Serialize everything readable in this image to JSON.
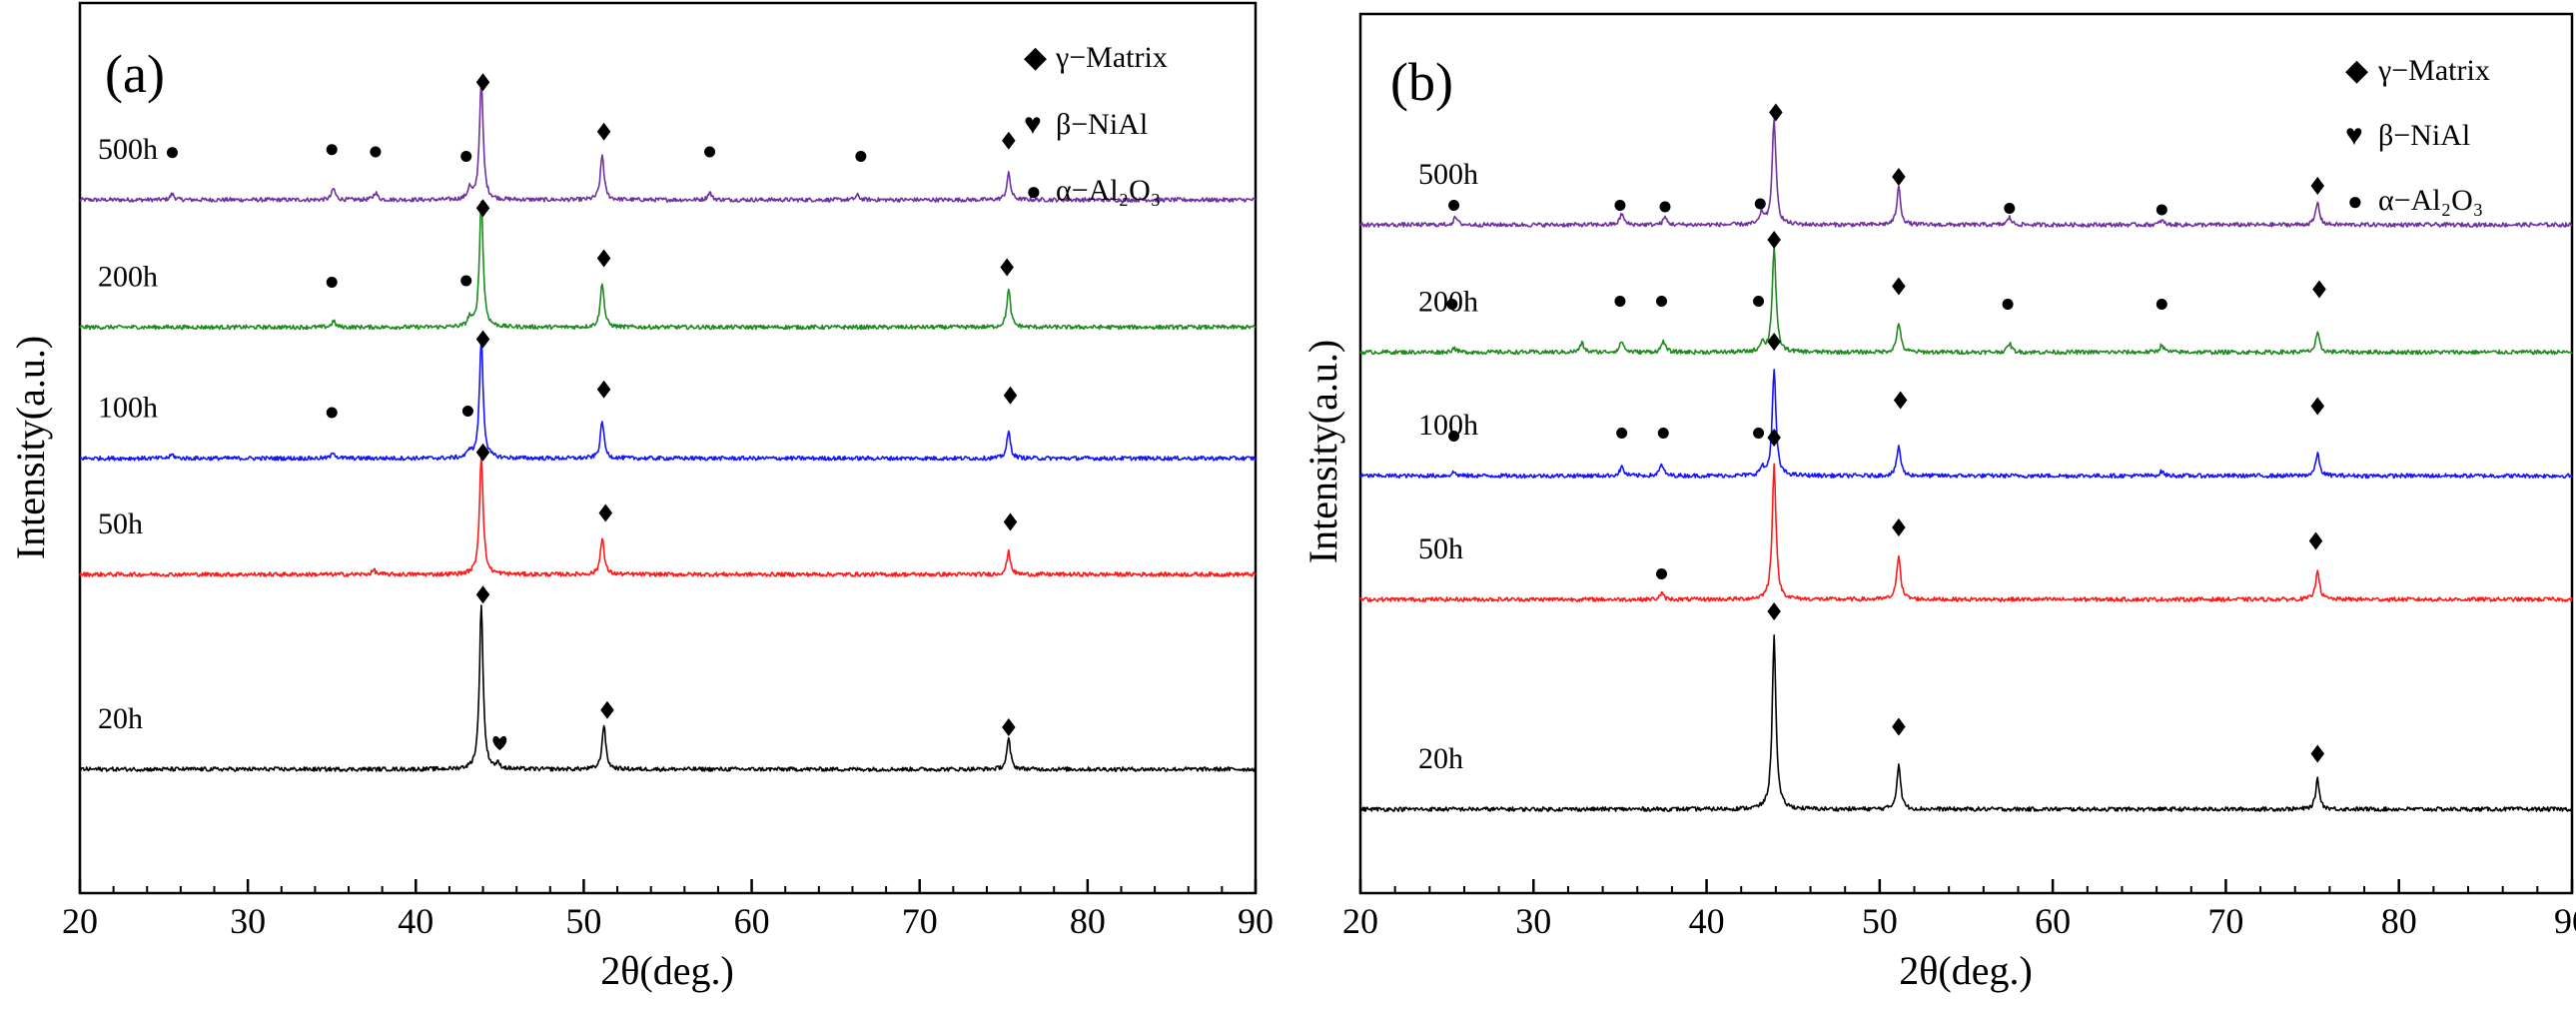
{
  "figure": {
    "xlabel": "2θ(deg.)",
    "ylabel": "Intensity(a.u.)"
  },
  "legend": [
    {
      "symbol": "diamond",
      "glyph": "◆",
      "label": "γ−Matrix"
    },
    {
      "symbol": "heart",
      "glyph": "♥",
      "label": "β−NiAl"
    },
    {
      "symbol": "circle",
      "glyph": "●",
      "label": "α−Al₂O₃"
    }
  ],
  "chart_data": [
    {
      "type": "line",
      "panel": "(a)",
      "xlabel": "2θ(deg.)",
      "ylabel": "Intensity(a.u.)",
      "xlim": [
        20,
        90
      ],
      "xticks": [
        20,
        30,
        40,
        50,
        60,
        70,
        80,
        90
      ],
      "ylim": [
        0,
        100
      ],
      "grid": false,
      "legend_position": "top-right",
      "series": [
        {
          "name": "500h",
          "color": "#7030a0",
          "baseline": 88,
          "peaks": [
            [
              25.5,
              0.8
            ],
            [
              35.1,
              1.5
            ],
            [
              37.6,
              1
            ],
            [
              43.2,
              1.5
            ],
            [
              43.9,
              16
            ],
            [
              51.1,
              6
            ],
            [
              57.5,
              1
            ],
            [
              66.3,
              0.6
            ],
            [
              75.3,
              3.5
            ]
          ],
          "markers": [
            {
              "symbol": "circle",
              "x": 25.5,
              "y": 94.3
            },
            {
              "symbol": "circle",
              "x": 35.0,
              "y": 94.7
            },
            {
              "symbol": "circle",
              "x": 37.6,
              "y": 94.4
            },
            {
              "symbol": "circle",
              "x": 43.0,
              "y": 93.8
            },
            {
              "symbol": "diamond",
              "x": 44.0,
              "y": 103.7
            },
            {
              "symbol": "diamond",
              "x": 51.2,
              "y": 97.1
            },
            {
              "symbol": "circle",
              "x": 57.5,
              "y": 94.4
            },
            {
              "symbol": "circle",
              "x": 66.5,
              "y": 93.8
            },
            {
              "symbol": "diamond",
              "x": 75.3,
              "y": 95.9
            }
          ]
        },
        {
          "name": "200h",
          "color": "#1f8a1f",
          "baseline": 71,
          "peaks": [
            [
              35.1,
              0.8
            ],
            [
              43.2,
              1.2
            ],
            [
              43.9,
              17
            ],
            [
              51.1,
              6
            ],
            [
              75.3,
              5
            ]
          ],
          "markers": [
            {
              "symbol": "circle",
              "x": 35.0,
              "y": 77.0
            },
            {
              "symbol": "circle",
              "x": 43.0,
              "y": 77.2
            },
            {
              "symbol": "diamond",
              "x": 44.0,
              "y": 86.9
            },
            {
              "symbol": "diamond",
              "x": 51.2,
              "y": 80.2
            },
            {
              "symbol": "diamond",
              "x": 75.2,
              "y": 79.0
            }
          ]
        },
        {
          "name": "100h",
          "color": "#1414ff",
          "baseline": 53.5,
          "peaks": [
            [
              25.5,
              0.5
            ],
            [
              35.1,
              0.8
            ],
            [
              43.2,
              1
            ],
            [
              43.9,
              16
            ],
            [
              51.1,
              5
            ],
            [
              75.3,
              3.5
            ]
          ],
          "markers": [
            {
              "symbol": "circle",
              "x": 35.0,
              "y": 59.6
            },
            {
              "symbol": "circle",
              "x": 43.1,
              "y": 59.8
            },
            {
              "symbol": "diamond",
              "x": 44.0,
              "y": 69.4
            },
            {
              "symbol": "diamond",
              "x": 51.2,
              "y": 62.7
            },
            {
              "symbol": "diamond",
              "x": 75.4,
              "y": 61.9
            }
          ]
        },
        {
          "name": "50h",
          "color": "#ff1a1a",
          "baseline": 38,
          "peaks": [
            [
              37.5,
              0.6
            ],
            [
              43.9,
              16
            ],
            [
              51.1,
              5
            ],
            [
              75.3,
              3
            ]
          ],
          "markers": [
            {
              "symbol": "diamond",
              "x": 44.0,
              "y": 54.3
            },
            {
              "symbol": "diamond",
              "x": 51.3,
              "y": 46.2
            },
            {
              "symbol": "diamond",
              "x": 75.4,
              "y": 45.0
            }
          ]
        },
        {
          "name": "20h",
          "color": "#000000",
          "baseline": 12,
          "peaks": [
            [
              43.9,
              22
            ],
            [
              44.9,
              0.6
            ],
            [
              51.2,
              6
            ],
            [
              75.3,
              4
            ]
          ],
          "markers": [
            {
              "symbol": "diamond",
              "x": 44.0,
              "y": 35.3
            },
            {
              "symbol": "heart",
              "x": 45.0,
              "y": 15.6
            },
            {
              "symbol": "diamond",
              "x": 51.4,
              "y": 19.9
            },
            {
              "symbol": "diamond",
              "x": 75.3,
              "y": 17.6
            }
          ]
        }
      ]
    },
    {
      "type": "line",
      "panel": "(b)",
      "xlabel": "2θ(deg.)",
      "ylabel": "Intensity(a.u.)",
      "xlim": [
        20,
        90
      ],
      "xticks": [
        20,
        30,
        40,
        50,
        60,
        70,
        80,
        90
      ],
      "ylim": [
        0,
        100
      ],
      "grid": false,
      "legend_position": "top-right",
      "series": [
        {
          "name": "500h",
          "color": "#7030a0",
          "baseline": 86,
          "peaks": [
            [
              25.5,
              1
            ],
            [
              35.1,
              1.5
            ],
            [
              37.6,
              1
            ],
            [
              43.2,
              1.5
            ],
            [
              43.9,
              14
            ],
            [
              51.1,
              5
            ],
            [
              57.5,
              1
            ],
            [
              66.3,
              0.6
            ],
            [
              75.3,
              3
            ]
          ],
          "markers": [
            {
              "symbol": "circle",
              "x": 25.4,
              "y": 88.6
            },
            {
              "symbol": "circle",
              "x": 35.0,
              "y": 88.6
            },
            {
              "symbol": "circle",
              "x": 37.6,
              "y": 88.4
            },
            {
              "symbol": "circle",
              "x": 43.1,
              "y": 88.8
            },
            {
              "symbol": "diamond",
              "x": 44.0,
              "y": 101.0
            },
            {
              "symbol": "diamond",
              "x": 51.1,
              "y": 92.4
            },
            {
              "symbol": "circle",
              "x": 57.5,
              "y": 88.2
            },
            {
              "symbol": "circle",
              "x": 66.3,
              "y": 88.0
            },
            {
              "symbol": "diamond",
              "x": 75.3,
              "y": 91.2
            }
          ]
        },
        {
          "name": "200h",
          "color": "#1f8a1f",
          "baseline": 69,
          "peaks": [
            [
              25.4,
              0.6
            ],
            [
              32.8,
              1.2
            ],
            [
              35.1,
              1.5
            ],
            [
              37.5,
              1.5
            ],
            [
              43.2,
              1.3
            ],
            [
              43.9,
              14
            ],
            [
              51.1,
              4
            ],
            [
              57.5,
              1.2
            ],
            [
              66.3,
              1
            ],
            [
              75.3,
              2.5
            ]
          ],
          "markers": [
            {
              "symbol": "circle",
              "x": 25.3,
              "y": 75.4
            },
            {
              "symbol": "circle",
              "x": 35.0,
              "y": 75.8
            },
            {
              "symbol": "circle",
              "x": 37.4,
              "y": 75.8
            },
            {
              "symbol": "circle",
              "x": 43.0,
              "y": 75.8
            },
            {
              "symbol": "diamond",
              "x": 43.9,
              "y": 84.0
            },
            {
              "symbol": "diamond",
              "x": 51.1,
              "y": 77.8
            },
            {
              "symbol": "circle",
              "x": 57.4,
              "y": 75.4
            },
            {
              "symbol": "circle",
              "x": 66.3,
              "y": 75.4
            },
            {
              "symbol": "diamond",
              "x": 75.4,
              "y": 77.4
            }
          ]
        },
        {
          "name": "100h",
          "color": "#1414ff",
          "baseline": 52.5,
          "peaks": [
            [
              25.4,
              0.5
            ],
            [
              35.1,
              1.2
            ],
            [
              37.4,
              1.5
            ],
            [
              43.2,
              1
            ],
            [
              43.9,
              14
            ],
            [
              51.1,
              4
            ],
            [
              66.3,
              0.6
            ],
            [
              75.3,
              3
            ]
          ],
          "markers": [
            {
              "symbol": "circle",
              "x": 25.4,
              "y": 57.8
            },
            {
              "symbol": "circle",
              "x": 35.1,
              "y": 58.2
            },
            {
              "symbol": "circle",
              "x": 37.5,
              "y": 58.2
            },
            {
              "symbol": "circle",
              "x": 43.0,
              "y": 58.2
            },
            {
              "symbol": "diamond",
              "x": 43.9,
              "y": 70.4
            },
            {
              "symbol": "diamond",
              "x": 51.2,
              "y": 62.6
            },
            {
              "symbol": "diamond",
              "x": 75.3,
              "y": 61.8
            }
          ]
        },
        {
          "name": "50h",
          "color": "#ff1a1a",
          "baseline": 36,
          "peaks": [
            [
              37.4,
              0.8
            ],
            [
              43.9,
              18
            ],
            [
              51.1,
              6
            ],
            [
              75.3,
              4
            ]
          ],
          "markers": [
            {
              "symbol": "circle",
              "x": 37.4,
              "y": 39.4
            },
            {
              "symbol": "diamond",
              "x": 43.9,
              "y": 57.6
            },
            {
              "symbol": "diamond",
              "x": 51.1,
              "y": 45.6
            },
            {
              "symbol": "diamond",
              "x": 75.2,
              "y": 43.8
            }
          ]
        },
        {
          "name": "20h",
          "color": "#000000",
          "baseline": 8,
          "peaks": [
            [
              43.9,
              23
            ],
            [
              51.1,
              6
            ],
            [
              75.3,
              4
            ]
          ],
          "markers": [
            {
              "symbol": "diamond",
              "x": 43.9,
              "y": 34.4
            },
            {
              "symbol": "diamond",
              "x": 51.1,
              "y": 19.0
            },
            {
              "symbol": "diamond",
              "x": 75.3,
              "y": 15.4
            }
          ]
        }
      ]
    }
  ]
}
